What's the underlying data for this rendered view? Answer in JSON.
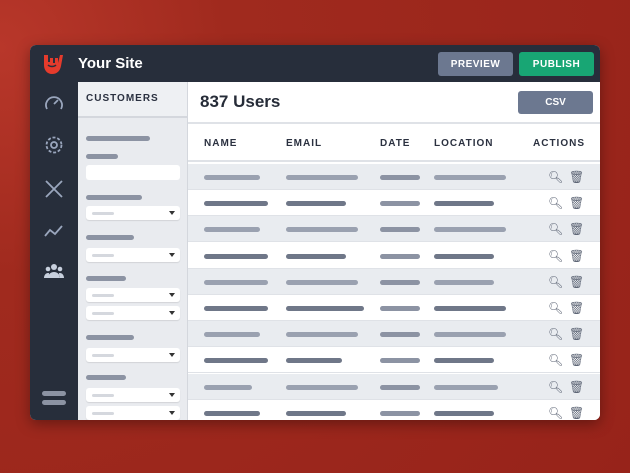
{
  "header": {
    "site_title": "Your Site",
    "preview_label": "PREVIEW",
    "publish_label": "PUBLISH",
    "logo": "rock-hand-logo"
  },
  "sidebar": {
    "icons": [
      "speedometer-icon",
      "gear-icon",
      "tools-icon",
      "analytics-icon",
      "users-icon"
    ],
    "menu_icon": "menu-icon"
  },
  "filter_panel": {
    "title": "CUSTOMERS"
  },
  "main": {
    "title": "837 Users",
    "csv_label": "CSV",
    "columns": [
      "NAME",
      "EMAIL",
      "DATE",
      "LOCATION",
      "ACTIONS"
    ]
  },
  "colors": {
    "topbar": "#272e3b",
    "publish": "#18a674",
    "secondary_button": "#6c7890",
    "background": "#9c2418"
  }
}
